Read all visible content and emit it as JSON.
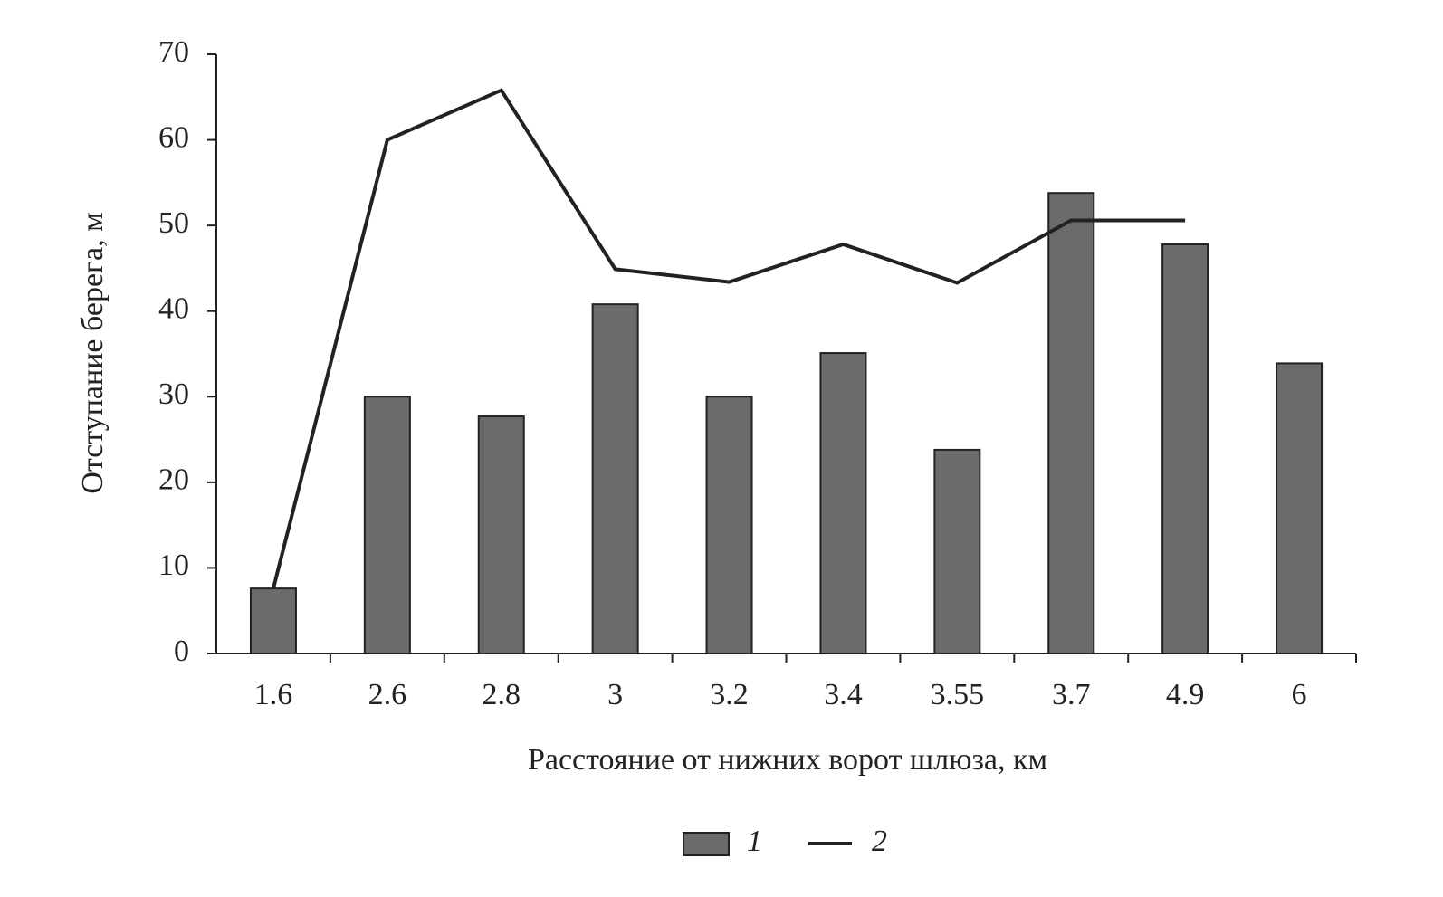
{
  "chart_data": {
    "type": "bar",
    "x_label": "Расстояние от нижних ворот шлюза, км",
    "y_label": "Отступание берега, м",
    "categories": [
      "1.6",
      "2.6",
      "2.8",
      "3",
      "3.2",
      "3.4",
      "3.55",
      "3.7",
      "4.9",
      "6"
    ],
    "series": [
      {
        "name": "1",
        "type": "bar",
        "color": "#6b6b6b",
        "values": [
          7.6,
          30,
          27.7,
          40.8,
          30,
          35.1,
          23.8,
          53.8,
          47.8,
          33.9
        ]
      },
      {
        "name": "2",
        "type": "line",
        "color": "#222222",
        "values": [
          7.6,
          60,
          65.8,
          44.9,
          43.4,
          47.8,
          43.3,
          50.6,
          50.6,
          null
        ]
      }
    ],
    "ylim": [
      0,
      70
    ],
    "yticks": [
      0,
      10,
      20,
      30,
      40,
      50,
      60,
      70
    ],
    "grid": false,
    "legend": "bottom"
  }
}
